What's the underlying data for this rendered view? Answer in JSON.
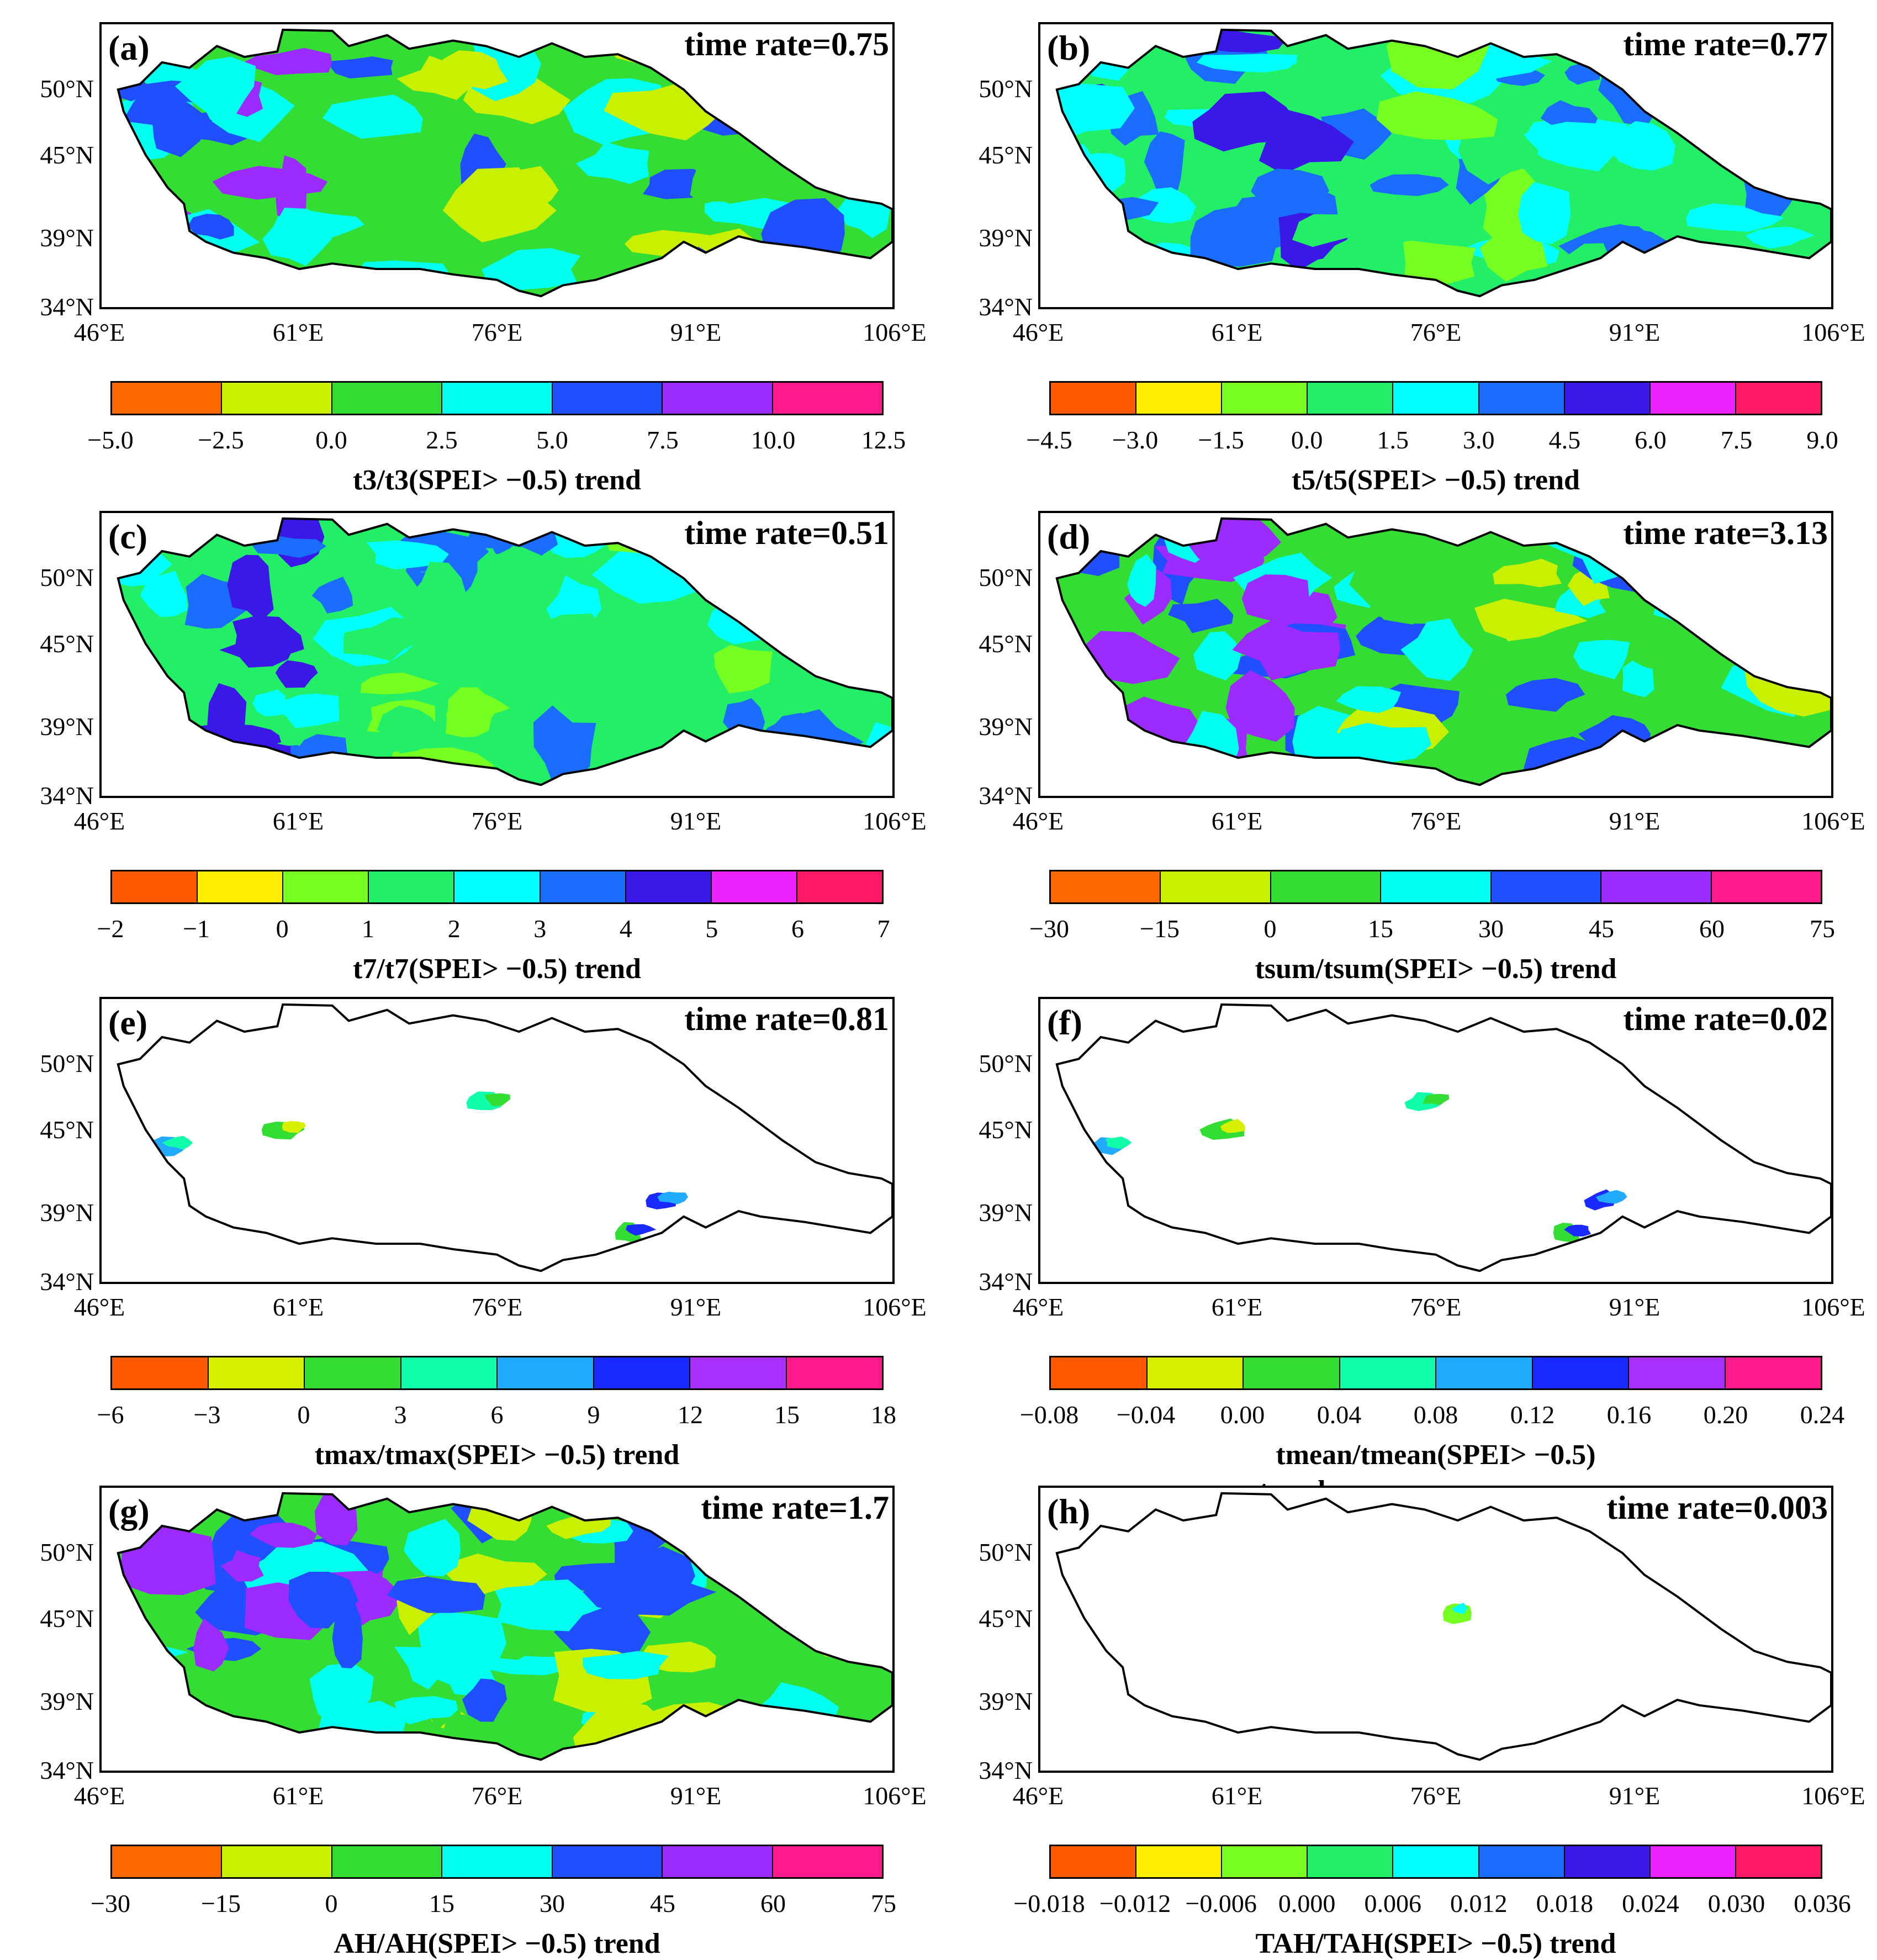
{
  "figure": {
    "lat_labels": [
      "50°N",
      "45°N",
      "39°N",
      "34°N"
    ],
    "lon_labels": [
      "46°E",
      "61°E",
      "76°E",
      "91°E",
      "106°E"
    ],
    "panels": [
      {
        "id": "a",
        "label": "(a)",
        "time_rate": "time rate=0.75",
        "colorbar_title": "t3/t3(SPEI> −0.5)  trend",
        "ticks": [
          "−5.0",
          "−2.5",
          "0.0",
          "2.5",
          "5.0",
          "7.5",
          "10.0",
          "12.5"
        ],
        "colors": [
          "#ff6a00",
          "#c8f000",
          "#33dd33",
          "#00ffee",
          "#1f4fff",
          "#9b2bff",
          "#ff1a8c"
        ],
        "fill": "full"
      },
      {
        "id": "b",
        "label": "(b)",
        "time_rate": "time rate=0.77",
        "colorbar_title": "t5/t5(SPEI> −0.5)  trend",
        "ticks": [
          "−4.5",
          "−3.0",
          "−1.5",
          "0.0",
          "1.5",
          "3.0",
          "4.5",
          "6.0",
          "7.5",
          "9.0"
        ],
        "colors": [
          "#ff5a00",
          "#ffee00",
          "#77ff22",
          "#22ee66",
          "#00ffff",
          "#1a6dff",
          "#3a18e8",
          "#ee22ff",
          "#ff1a66"
        ],
        "fill": "full"
      },
      {
        "id": "c",
        "label": "(c)",
        "time_rate": "time rate=0.51",
        "colorbar_title": "t7/t7(SPEI> −0.5)  trend",
        "ticks": [
          "−2",
          "−1",
          "0",
          "1",
          "2",
          "3",
          "4",
          "5",
          "6",
          "7"
        ],
        "colors": [
          "#ff5a00",
          "#ffee00",
          "#77ff22",
          "#22ee66",
          "#00ffff",
          "#1a6dff",
          "#3a18e8",
          "#ee22ff",
          "#ff1a66"
        ],
        "fill": "full"
      },
      {
        "id": "d",
        "label": "(d)",
        "time_rate": "time rate=3.13",
        "colorbar_title": "tsum/tsum(SPEI> −0.5)  trend",
        "ticks": [
          "−30",
          "−15",
          "0",
          "15",
          "30",
          "45",
          "60",
          "75"
        ],
        "colors": [
          "#ff6a00",
          "#c8f000",
          "#33dd33",
          "#00ffee",
          "#1f4fff",
          "#9b2bff",
          "#ff1a8c"
        ],
        "fill": "full"
      },
      {
        "id": "e",
        "label": "(e)",
        "time_rate": "time rate=0.81",
        "colorbar_title": "tmax/tmax(SPEI> −0.5)  trend",
        "ticks": [
          "−6",
          "−3",
          "0",
          "3",
          "6",
          "9",
          "12",
          "15",
          "18"
        ],
        "colors": [
          "#ff5a00",
          "#d8f000",
          "#33dd33",
          "#11ffaa",
          "#22aaff",
          "#1a2aff",
          "#a830ff",
          "#ff1a8c"
        ],
        "fill": "sparse"
      },
      {
        "id": "f",
        "label": "(f)",
        "time_rate": "time rate=0.02",
        "colorbar_title": "tmean/tmean(SPEI> −0.5)",
        "colorbar_title_extra": "trend",
        "ticks": [
          "−0.08",
          "−0.04",
          "0.00",
          "0.04",
          "0.08",
          "0.12",
          "0.16",
          "0.20",
          "0.24"
        ],
        "colors": [
          "#ff5a00",
          "#d8f000",
          "#33dd33",
          "#11ffaa",
          "#22aaff",
          "#1a2aff",
          "#a830ff",
          "#ff1a8c"
        ],
        "fill": "sparse"
      },
      {
        "id": "g",
        "label": "(g)",
        "time_rate": "time rate=1.7",
        "colorbar_title": "AH/AH(SPEI> −0.5)  trend",
        "ticks": [
          "−30",
          "−15",
          "0",
          "15",
          "30",
          "45",
          "60",
          "75"
        ],
        "colors": [
          "#ff6a00",
          "#c8f000",
          "#33dd33",
          "#00ffee",
          "#1f4fff",
          "#9b2bff",
          "#ff1a8c"
        ],
        "fill": "full"
      },
      {
        "id": "h",
        "label": "(h)",
        "time_rate": "time rate=0.003",
        "colorbar_title": "TAH/TAH(SPEI> −0.5)  trend",
        "ticks": [
          "−0.018",
          "−0.012",
          "−0.006",
          "0.000",
          "0.006",
          "0.012",
          "0.018",
          "0.024",
          "0.030",
          "0.036"
        ],
        "colors": [
          "#ff5a00",
          "#ffee00",
          "#77ff22",
          "#22ee66",
          "#00ffff",
          "#1a6dff",
          "#3a18e8",
          "#ee22ff",
          "#ff1a66"
        ],
        "fill": "tiny"
      }
    ]
  }
}
